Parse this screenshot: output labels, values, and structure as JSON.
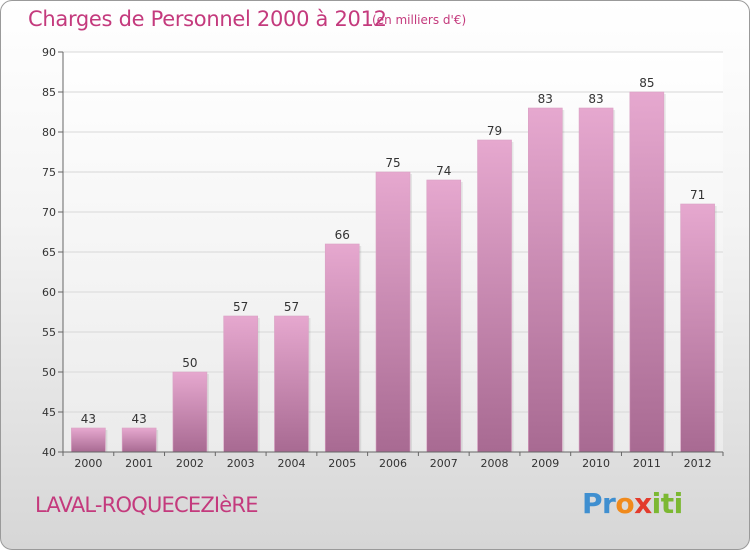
{
  "chart_data": {
    "type": "bar",
    "title": "Charges de Personnel 2000 à 2012",
    "subtitle": "(en milliers d'€)",
    "categories": [
      "2000",
      "2001",
      "2002",
      "2003",
      "2004",
      "2005",
      "2006",
      "2007",
      "2008",
      "2009",
      "2010",
      "2011",
      "2012"
    ],
    "values": [
      43,
      43,
      50,
      57,
      57,
      66,
      75,
      74,
      79,
      83,
      83,
      85,
      71
    ],
    "ylim": [
      40,
      90
    ],
    "yticks": [
      40,
      45,
      50,
      55,
      60,
      65,
      70,
      75,
      80,
      85,
      90
    ],
    "grid": true,
    "colors": {
      "bar_top": "#e6a8cf",
      "bar_bottom": "#a86a92",
      "text": "#c43a7d"
    }
  },
  "commune": "LAVAL-ROQUECEZIèRE",
  "logo": {
    "text": "Proxiti",
    "letters": [
      "P",
      "r",
      "o",
      "x",
      "i",
      "t",
      "i"
    ],
    "colors": [
      "#3f8fd0",
      "#3f8fd0",
      "#f08a1c",
      "#e33b2c",
      "#7cb832",
      "#7cb832",
      "#7cb832"
    ]
  }
}
